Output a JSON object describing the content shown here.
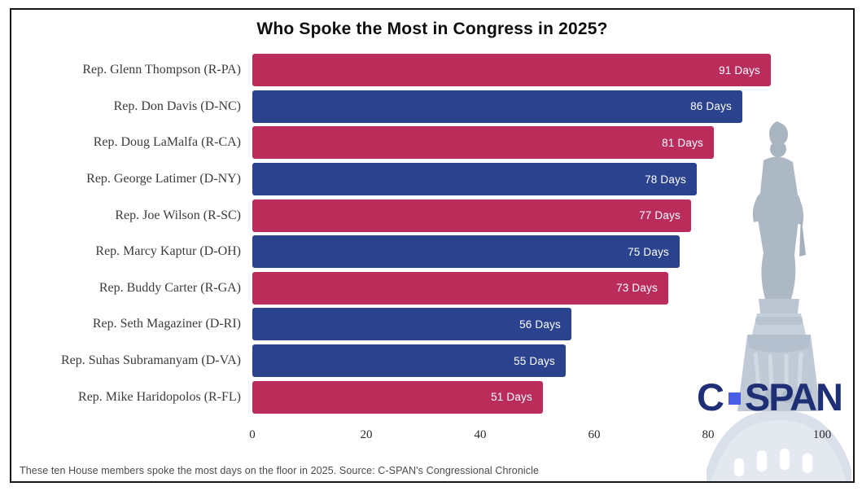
{
  "title": "Who Spoke the Most in Congress in 2025?",
  "footer": "These ten House members spoke the most days on the floor in 2025.  Source: C-SPAN's Congressional Chronicle",
  "logo": {
    "c": "C",
    "span": "SPAN"
  },
  "colors": {
    "republican_bar": "#ba2d5b",
    "democrat_bar": "#2b438e",
    "logo_navy": "#1e2f75",
    "logo_square": "#4a5fe8",
    "frame_border": "#161616"
  },
  "chart_data": {
    "type": "bar",
    "orientation": "horizontal",
    "title": "Who Spoke the Most in Congress in 2025?",
    "categories": [
      "Rep. Glenn Thompson (R-PA)",
      "Rep. Don Davis (D-NC)",
      "Rep. Doug LaMalfa (R-CA)",
      "Rep. George Latimer (D-NY)",
      "Rep. Joe Wilson (R-SC)",
      "Rep. Marcy Kaptur (D-OH)",
      "Rep. Buddy Carter (R-GA)",
      "Rep. Seth Magaziner (D-RI)",
      "Rep. Suhas Subramanyam (D-VA)",
      "Rep. Mike Haridopolos (R-FL)"
    ],
    "values": [
      91,
      86,
      81,
      78,
      77,
      75,
      73,
      56,
      55,
      51
    ],
    "parties": [
      "R",
      "D",
      "R",
      "D",
      "R",
      "D",
      "R",
      "D",
      "D",
      "R"
    ],
    "unit": "Days",
    "xlabel": "",
    "ylabel": "",
    "xlim": [
      0,
      100
    ],
    "x_ticks": [
      0,
      20,
      40,
      60,
      80,
      100
    ],
    "grid": false,
    "legend": false,
    "value_labels_inside_bars": true
  }
}
